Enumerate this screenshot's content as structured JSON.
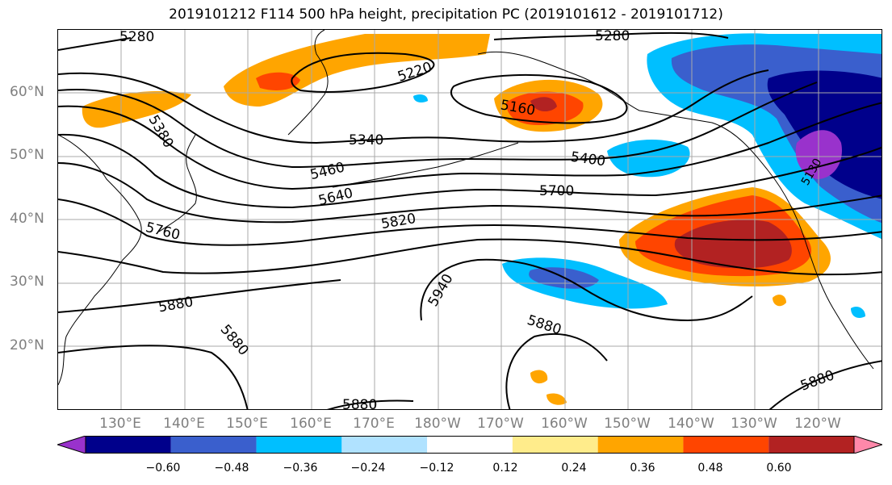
{
  "title": "2019101212 F114 500 hPa height, precipitation PC (2019101612 - 2019101712)",
  "lat_labels": [
    "60°N",
    "50°N",
    "40°N",
    "30°N",
    "20°N"
  ],
  "lon_labels": [
    "130°E",
    "140°E",
    "150°E",
    "160°E",
    "170°E",
    "180°W",
    "170°W",
    "160°W",
    "150°W",
    "140°W",
    "130°W",
    "120°W"
  ],
  "contour_labels": [
    "5280",
    "5280",
    "5220",
    "5160",
    "5340",
    "5380",
    "5400",
    "5460",
    "5640",
    "5700",
    "5820",
    "5760",
    "5940",
    "5880",
    "5880",
    "5880",
    "5880",
    "5880",
    "5880",
    "5130"
  ],
  "colorbar": {
    "ticks": [
      "−0.60",
      "−0.48",
      "−0.36",
      "−0.24",
      "−0.12",
      "0.12",
      "0.24",
      "0.36",
      "0.48",
      "0.60"
    ],
    "colors": [
      "#9932cc",
      "#00008b",
      "#3a5fcd",
      "#00bfff",
      "#b0e2ff",
      "#ffffff",
      "#ffec8b",
      "#ffa500",
      "#ff4500",
      "#b22222",
      "#ff88aa"
    ]
  }
}
